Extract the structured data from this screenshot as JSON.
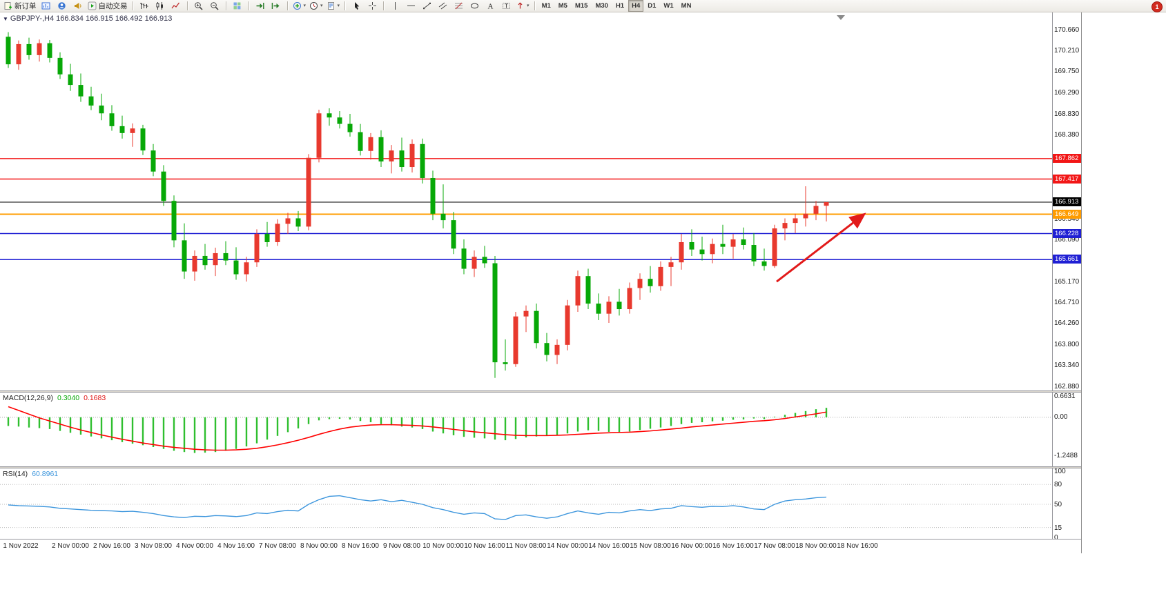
{
  "icons": {
    "chart_dropdown": "▼",
    "caret": "▾"
  },
  "toolbar": {
    "new_order": "新订单",
    "autotrade": "自动交易",
    "timeframes": [
      "M1",
      "M5",
      "M15",
      "M30",
      "H1",
      "H4",
      "D1",
      "W1",
      "MN"
    ],
    "active_timeframe": "H4",
    "notification": "1"
  },
  "chart": {
    "title": "GBPJPY-,H4  166.834 166.915 166.492 166.913",
    "symbol": "GBPJPY-",
    "period": "H4",
    "open": "166.834",
    "high": "166.915",
    "low": "166.492",
    "close": "166.913"
  },
  "macd": {
    "label": "MACD(12,26,9)",
    "main": "0.3040",
    "signal": "0.1683"
  },
  "rsi": {
    "label": "RSI(14)",
    "value": "60.8961"
  },
  "chart_data": {
    "type": "candlestick",
    "symbol": "GBPJPY-",
    "timeframe": "H4",
    "ylim": [
      162.88,
      170.66
    ],
    "candle_up_color": "#e8392e",
    "candle_down_color": "#07a807",
    "price_axis_ticks": [
      "170.660",
      "170.210",
      "169.750",
      "169.290",
      "168.830",
      "168.380",
      "166.540",
      "166.090",
      "165.170",
      "164.710",
      "164.260",
      "163.800",
      "163.340",
      "162.880"
    ],
    "price_lines": [
      {
        "label": "167.862",
        "price": 167.862,
        "color": "#f21616",
        "kind": "resistance-line"
      },
      {
        "label": "167.417",
        "price": 167.417,
        "color": "#f21616",
        "kind": "resistance-line"
      },
      {
        "label": "166.913",
        "price": 166.913,
        "color": "#000000",
        "kind": "current-price-line"
      },
      {
        "label": "166.649",
        "price": 166.649,
        "color": "#ff9c00",
        "kind": "pivot-line"
      },
      {
        "label": "166.228",
        "price": 166.228,
        "color": "#1f1fd4",
        "kind": "support-line"
      },
      {
        "label": "165.661",
        "price": 165.661,
        "color": "#1f1fd4",
        "kind": "support-line"
      }
    ],
    "time_labels": [
      {
        "i": 0,
        "t": "1 Nov 2022"
      },
      {
        "i": 6,
        "t": "2 Nov 00:00"
      },
      {
        "i": 10,
        "t": "2 Nov 16:00"
      },
      {
        "i": 14,
        "t": "3 Nov 08:00"
      },
      {
        "i": 18,
        "t": "4 Nov 00:00"
      },
      {
        "i": 22,
        "t": "4 Nov 16:00"
      },
      {
        "i": 26,
        "t": "7 Nov 08:00"
      },
      {
        "i": 30,
        "t": "8 Nov 00:00"
      },
      {
        "i": 34,
        "t": "8 Nov 16:00"
      },
      {
        "i": 38,
        "t": "9 Nov 08:00"
      },
      {
        "i": 42,
        "t": "10 Nov 00:00"
      },
      {
        "i": 46,
        "t": "10 Nov 16:00"
      },
      {
        "i": 50,
        "t": "11 Nov 08:00"
      },
      {
        "i": 54,
        "t": "14 Nov 00:00"
      },
      {
        "i": 58,
        "t": "14 Nov 16:00"
      },
      {
        "i": 62,
        "t": "15 Nov 08:00"
      },
      {
        "i": 66,
        "t": "16 Nov 00:00"
      },
      {
        "i": 70,
        "t": "16 Nov 16:00"
      },
      {
        "i": 74,
        "t": "17 Nov 08:00"
      },
      {
        "i": 78,
        "t": "18 Nov 00:00"
      },
      {
        "i": 82,
        "t": "18 Nov 16:00"
      }
    ],
    "candles": [
      [
        170.52,
        170.62,
        169.84,
        169.92
      ],
      [
        169.92,
        170.44,
        169.8,
        170.36
      ],
      [
        170.36,
        170.5,
        170.02,
        170.12
      ],
      [
        170.12,
        170.46,
        169.98,
        170.38
      ],
      [
        170.38,
        170.45,
        169.96,
        170.06
      ],
      [
        170.06,
        170.18,
        169.6,
        169.7
      ],
      [
        169.7,
        169.93,
        169.34,
        169.47
      ],
      [
        169.47,
        169.72,
        169.1,
        169.22
      ],
      [
        169.22,
        169.43,
        168.92,
        169.02
      ],
      [
        169.02,
        169.28,
        168.7,
        168.85
      ],
      [
        168.85,
        169.03,
        168.47,
        168.57
      ],
      [
        168.57,
        168.8,
        168.3,
        168.42
      ],
      [
        168.42,
        168.63,
        168.12,
        168.52
      ],
      [
        168.52,
        168.6,
        167.94,
        168.04
      ],
      [
        168.04,
        168.18,
        167.48,
        167.58
      ],
      [
        167.58,
        167.72,
        166.83,
        166.94
      ],
      [
        166.94,
        167.06,
        165.93,
        166.08
      ],
      [
        166.08,
        166.45,
        165.24,
        165.4
      ],
      [
        165.4,
        165.86,
        165.2,
        165.74
      ],
      [
        165.74,
        166.0,
        165.44,
        165.54
      ],
      [
        165.54,
        165.92,
        165.3,
        165.8
      ],
      [
        165.8,
        166.06,
        165.54,
        165.64
      ],
      [
        165.64,
        165.93,
        165.22,
        165.34
      ],
      [
        165.34,
        165.72,
        165.18,
        165.6
      ],
      [
        165.6,
        166.32,
        165.5,
        166.22
      ],
      [
        166.22,
        166.48,
        165.94,
        166.04
      ],
      [
        166.04,
        166.54,
        165.96,
        166.44
      ],
      [
        166.44,
        166.68,
        166.22,
        166.56
      ],
      [
        166.56,
        166.72,
        166.28,
        166.38
      ],
      [
        166.38,
        167.96,
        166.3,
        167.88
      ],
      [
        167.88,
        168.93,
        167.78,
        168.85
      ],
      [
        168.85,
        168.96,
        168.58,
        168.76
      ],
      [
        168.76,
        168.9,
        168.52,
        168.62
      ],
      [
        168.62,
        168.84,
        168.34,
        168.44
      ],
      [
        168.44,
        168.62,
        167.93,
        168.03
      ],
      [
        168.03,
        168.42,
        167.84,
        168.33
      ],
      [
        168.33,
        168.48,
        167.68,
        167.8
      ],
      [
        167.8,
        168.16,
        167.54,
        168.04
      ],
      [
        168.04,
        168.32,
        167.58,
        167.68
      ],
      [
        167.68,
        168.28,
        167.56,
        168.18
      ],
      [
        168.18,
        168.3,
        167.32,
        167.44
      ],
      [
        167.44,
        167.6,
        166.52,
        166.66
      ],
      [
        166.66,
        167.3,
        166.34,
        166.52
      ],
      [
        166.52,
        166.7,
        165.78,
        165.9
      ],
      [
        165.9,
        166.1,
        165.34,
        165.46
      ],
      [
        165.46,
        165.86,
        165.28,
        165.72
      ],
      [
        165.72,
        165.96,
        165.48,
        165.58
      ],
      [
        165.58,
        165.74,
        163.08,
        163.42
      ],
      [
        163.42,
        163.92,
        163.24,
        163.38
      ],
      [
        163.38,
        164.52,
        163.32,
        164.42
      ],
      [
        164.42,
        164.66,
        164.08,
        164.54
      ],
      [
        164.54,
        164.7,
        163.72,
        163.84
      ],
      [
        163.84,
        164.06,
        163.44,
        163.58
      ],
      [
        163.58,
        163.92,
        163.38,
        163.8
      ],
      [
        163.8,
        164.78,
        163.68,
        164.66
      ],
      [
        164.66,
        165.42,
        164.52,
        165.3
      ],
      [
        165.3,
        165.46,
        164.58,
        164.7
      ],
      [
        164.7,
        164.92,
        164.34,
        164.48
      ],
      [
        164.48,
        164.86,
        164.28,
        164.74
      ],
      [
        164.74,
        165.02,
        164.44,
        164.58
      ],
      [
        164.58,
        165.16,
        164.48,
        165.04
      ],
      [
        165.04,
        165.36,
        164.78,
        165.24
      ],
      [
        165.24,
        165.52,
        164.94,
        165.08
      ],
      [
        165.08,
        165.62,
        164.98,
        165.5
      ],
      [
        165.5,
        165.72,
        165.08,
        165.6
      ],
      [
        165.6,
        166.22,
        165.44,
        166.04
      ],
      [
        166.04,
        166.32,
        165.74,
        165.88
      ],
      [
        165.88,
        166.16,
        165.64,
        165.78
      ],
      [
        165.78,
        166.12,
        165.58,
        166.0
      ],
      [
        166.0,
        166.42,
        165.78,
        165.94
      ],
      [
        165.94,
        166.22,
        165.68,
        166.1
      ],
      [
        166.1,
        166.36,
        165.88,
        165.98
      ],
      [
        165.98,
        166.24,
        165.52,
        165.62
      ],
      [
        165.62,
        165.9,
        165.42,
        165.52
      ],
      [
        165.52,
        166.42,
        165.48,
        166.34
      ],
      [
        166.34,
        166.56,
        166.08,
        166.46
      ],
      [
        166.46,
        166.66,
        166.24,
        166.56
      ],
      [
        166.56,
        167.26,
        166.38,
        166.66
      ],
      [
        166.66,
        166.94,
        166.52,
        166.83
      ],
      [
        166.834,
        166.915,
        166.492,
        166.913
      ]
    ],
    "macd": {
      "ylim": [
        -1.2488,
        0.6631
      ],
      "scale": [
        "0.6631",
        "0.00",
        "-1.2488"
      ],
      "histogram_color": "#2fbf2f",
      "signal_color": "#ff0000",
      "histogram": [
        -0.28,
        -0.3,
        -0.33,
        -0.35,
        -0.38,
        -0.44,
        -0.5,
        -0.56,
        -0.62,
        -0.68,
        -0.74,
        -0.8,
        -0.85,
        -0.9,
        -0.96,
        -1.02,
        -1.08,
        -1.12,
        -1.15,
        -1.14,
        -1.12,
        -1.08,
        -1.02,
        -0.94,
        -0.84,
        -0.72,
        -0.6,
        -0.48,
        -0.36,
        -0.22,
        -0.1,
        -0.06,
        -0.05,
        -0.07,
        -0.12,
        -0.16,
        -0.22,
        -0.26,
        -0.3,
        -0.33,
        -0.38,
        -0.46,
        -0.52,
        -0.58,
        -0.63,
        -0.66,
        -0.68,
        -0.72,
        -0.74,
        -0.7,
        -0.65,
        -0.62,
        -0.6,
        -0.57,
        -0.52,
        -0.46,
        -0.42,
        -0.44,
        -0.47,
        -0.49,
        -0.46,
        -0.41,
        -0.37,
        -0.33,
        -0.28,
        -0.22,
        -0.18,
        -0.16,
        -0.13,
        -0.11,
        -0.08,
        -0.07,
        -0.04,
        -0.06,
        0.02,
        0.08,
        0.14,
        0.2,
        0.26,
        0.304
      ],
      "signal": [
        0.34,
        0.22,
        0.1,
        -0.02,
        -0.12,
        -0.22,
        -0.32,
        -0.41,
        -0.49,
        -0.57,
        -0.64,
        -0.71,
        -0.77,
        -0.83,
        -0.88,
        -0.93,
        -0.97,
        -1.0,
        -1.03,
        -1.05,
        -1.06,
        -1.06,
        -1.05,
        -1.03,
        -1.0,
        -0.95,
        -0.89,
        -0.82,
        -0.74,
        -0.65,
        -0.55,
        -0.46,
        -0.38,
        -0.32,
        -0.28,
        -0.25,
        -0.24,
        -0.24,
        -0.25,
        -0.26,
        -0.28,
        -0.31,
        -0.35,
        -0.39,
        -0.43,
        -0.47,
        -0.5,
        -0.53,
        -0.56,
        -0.58,
        -0.59,
        -0.59,
        -0.59,
        -0.58,
        -0.57,
        -0.55,
        -0.53,
        -0.51,
        -0.5,
        -0.49,
        -0.48,
        -0.46,
        -0.44,
        -0.41,
        -0.38,
        -0.35,
        -0.31,
        -0.28,
        -0.25,
        -0.22,
        -0.19,
        -0.16,
        -0.13,
        -0.11,
        -0.08,
        -0.04,
        0.01,
        0.06,
        0.11,
        0.1683
      ]
    },
    "rsi": {
      "ylim": [
        0,
        100
      ],
      "scale": [
        "100",
        "80",
        "50",
        "15",
        "0"
      ],
      "levels": [
        80,
        50,
        15
      ],
      "line_color": "#3d96dd",
      "values": [
        49,
        48,
        47.5,
        47,
        46,
        44,
        43,
        42,
        41,
        40.5,
        40,
        39,
        39.5,
        38,
        36,
        33,
        31,
        30,
        32,
        31.5,
        33,
        32.5,
        31.5,
        33,
        37,
        36,
        39,
        41,
        40,
        50,
        57,
        62,
        63,
        60,
        57,
        55,
        57,
        54,
        56,
        53,
        50,
        45,
        42,
        38,
        35,
        37,
        36,
        28,
        27,
        33,
        34,
        31,
        29,
        31,
        36,
        40,
        37,
        35,
        38,
        37,
        40,
        42,
        40.5,
        43,
        44,
        48,
        46.5,
        45.5,
        47,
        46.5,
        48,
        46,
        43,
        42,
        50,
        55,
        57,
        58,
        60,
        60.9
      ]
    },
    "arrow": {
      "from_index": 74.2,
      "from_price": 165.18,
      "to_index": 82.6,
      "to_price": 166.64,
      "color": "#e21a1a"
    }
  }
}
